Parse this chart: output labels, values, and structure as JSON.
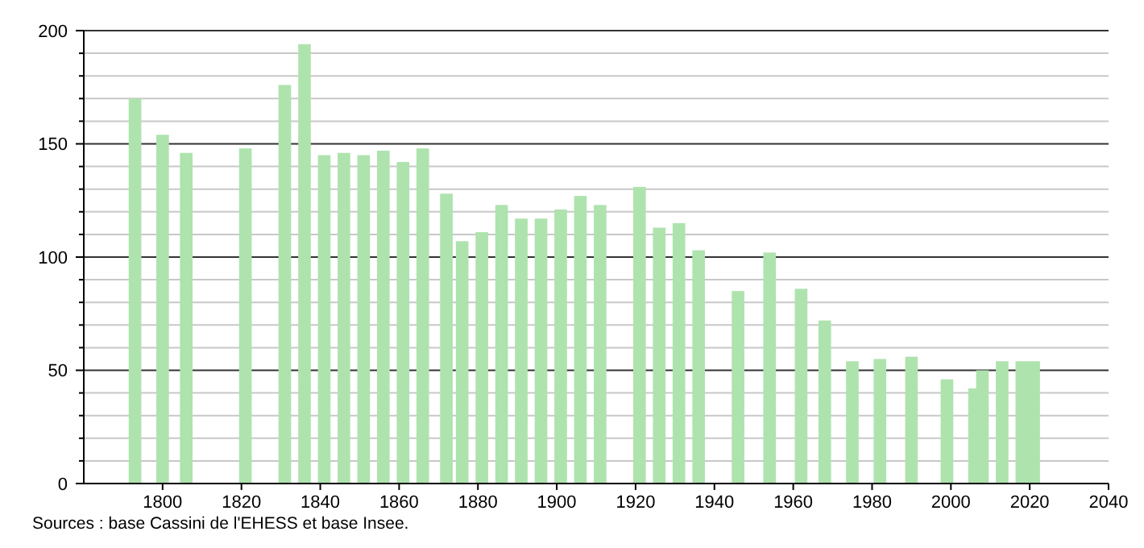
{
  "chart_data": {
    "type": "bar",
    "x": [
      1793,
      1800,
      1806,
      1821,
      1831,
      1836,
      1841,
      1846,
      1851,
      1856,
      1861,
      1866,
      1872,
      1876,
      1881,
      1886,
      1891,
      1896,
      1901,
      1906,
      1911,
      1921,
      1926,
      1931,
      1936,
      1946,
      1954,
      1962,
      1968,
      1975,
      1982,
      1990,
      1999,
      2006,
      2008,
      2013,
      2018,
      2021
    ],
    "values": [
      170,
      154,
      146,
      148,
      176,
      194,
      145,
      146,
      145,
      147,
      142,
      148,
      128,
      107,
      111,
      123,
      117,
      117,
      121,
      127,
      123,
      131,
      113,
      115,
      103,
      85,
      102,
      86,
      72,
      54,
      55,
      56,
      46,
      42,
      50,
      54,
      54,
      54
    ],
    "color": "#aee3ae",
    "xlim": [
      1780,
      2040
    ],
    "xticks": [
      1800,
      1820,
      1840,
      1860,
      1880,
      1900,
      1920,
      1940,
      1960,
      1980,
      2000,
      2020,
      2040
    ],
    "ylim": [
      0,
      200
    ],
    "yticks": [
      0,
      {
        "value": 10,
        "label": null
      },
      {
        "value": 20,
        "label": null
      },
      {
        "value": 30,
        "label": null
      },
      {
        "value": 40,
        "label": null
      },
      50,
      {
        "value": 60,
        "label": null
      },
      {
        "value": 70,
        "label": null
      },
      {
        "value": 80,
        "label": null
      },
      {
        "value": 90,
        "label": null
      },
      100,
      {
        "value": 110,
        "label": null
      },
      {
        "value": 120,
        "label": null
      },
      {
        "value": 130,
        "label": null
      },
      {
        "value": 140,
        "label": null
      },
      150,
      {
        "value": 160,
        "label": null
      },
      {
        "value": 170,
        "label": null
      },
      {
        "value": 180,
        "label": null
      },
      {
        "value": 190,
        "label": null
      },
      200
    ],
    "grid": true,
    "annotations": [
      "Sources : base Cassini de l'EHESS et base Insee."
    ]
  }
}
